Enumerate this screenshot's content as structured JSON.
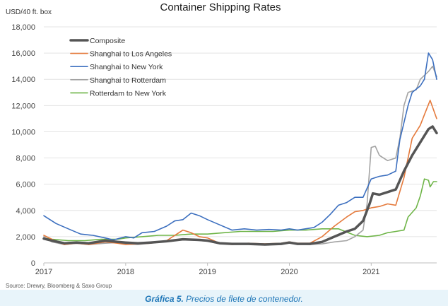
{
  "chart_data": {
    "type": "line",
    "title": "Container Shipping Rates",
    "ylabel": "USD/40 ft. box",
    "xlim": [
      2017,
      2021.8
    ],
    "ylim": [
      0,
      18000
    ],
    "x_ticks": [
      "2017",
      "2018",
      "2019",
      "2020",
      "2021"
    ],
    "y_ticks": [
      "0",
      "2,000",
      "4,000",
      "6,000",
      "8,000",
      "10,000",
      "12,000",
      "14,000",
      "16,000",
      "18,000"
    ],
    "grid": "horizontal",
    "legend": "top-left",
    "source": "Source: Drewry, Bloomberg & Saxo Group",
    "series": [
      {
        "name": "Composite",
        "color": "#555555",
        "width": 3.5,
        "points": [
          [
            2017,
            1850
          ],
          [
            2017.1,
            1700
          ],
          [
            2017.25,
            1500
          ],
          [
            2017.4,
            1550
          ],
          [
            2017.55,
            1500
          ],
          [
            2017.75,
            1700
          ],
          [
            2017.9,
            1600
          ],
          [
            2018.0,
            1550
          ],
          [
            2018.15,
            1500
          ],
          [
            2018.3,
            1550
          ],
          [
            2018.5,
            1650
          ],
          [
            2018.7,
            1800
          ],
          [
            2018.9,
            1750
          ],
          [
            2019.0,
            1700
          ],
          [
            2019.15,
            1500
          ],
          [
            2019.3,
            1450
          ],
          [
            2019.5,
            1450
          ],
          [
            2019.7,
            1400
          ],
          [
            2019.9,
            1450
          ],
          [
            2020.0,
            1550
          ],
          [
            2020.1,
            1450
          ],
          [
            2020.25,
            1450
          ],
          [
            2020.4,
            1600
          ],
          [
            2020.55,
            2000
          ],
          [
            2020.7,
            2400
          ],
          [
            2020.8,
            2600
          ],
          [
            2020.9,
            3200
          ],
          [
            2020.98,
            4500
          ],
          [
            2021.02,
            5300
          ],
          [
            2021.1,
            5200
          ],
          [
            2021.2,
            5400
          ],
          [
            2021.3,
            5600
          ],
          [
            2021.4,
            7000
          ],
          [
            2021.5,
            8200
          ],
          [
            2021.6,
            9200
          ],
          [
            2021.7,
            10200
          ],
          [
            2021.75,
            10400
          ],
          [
            2021.8,
            9900
          ]
        ]
      },
      {
        "name": "Shanghai to Los Angeles",
        "color": "#e57a3c",
        "width": 1.6,
        "points": [
          [
            2017,
            2100
          ],
          [
            2017.1,
            1800
          ],
          [
            2017.25,
            1400
          ],
          [
            2017.4,
            1500
          ],
          [
            2017.55,
            1400
          ],
          [
            2017.75,
            1600
          ],
          [
            2017.9,
            1500
          ],
          [
            2018.0,
            1400
          ],
          [
            2018.15,
            1450
          ],
          [
            2018.3,
            1500
          ],
          [
            2018.5,
            1700
          ],
          [
            2018.7,
            2500
          ],
          [
            2018.8,
            2300
          ],
          [
            2018.9,
            2000
          ],
          [
            2019.0,
            1900
          ],
          [
            2019.15,
            1500
          ],
          [
            2019.3,
            1400
          ],
          [
            2019.5,
            1500
          ],
          [
            2019.7,
            1450
          ],
          [
            2019.9,
            1500
          ],
          [
            2020.0,
            1600
          ],
          [
            2020.1,
            1500
          ],
          [
            2020.25,
            1500
          ],
          [
            2020.4,
            2000
          ],
          [
            2020.55,
            2800
          ],
          [
            2020.7,
            3500
          ],
          [
            2020.8,
            3900
          ],
          [
            2020.9,
            4000
          ],
          [
            2021.0,
            4200
          ],
          [
            2021.1,
            4300
          ],
          [
            2021.2,
            4500
          ],
          [
            2021.3,
            4400
          ],
          [
            2021.4,
            6500
          ],
          [
            2021.5,
            9500
          ],
          [
            2021.6,
            10500
          ],
          [
            2021.65,
            11300
          ],
          [
            2021.72,
            12400
          ],
          [
            2021.8,
            11000
          ]
        ]
      },
      {
        "name": "Shanghai to New York",
        "color": "#3c6fbf",
        "width": 1.6,
        "points": [
          [
            2017,
            3600
          ],
          [
            2017.05,
            3400
          ],
          [
            2017.15,
            3000
          ],
          [
            2017.3,
            2600
          ],
          [
            2017.45,
            2200
          ],
          [
            2017.6,
            2100
          ],
          [
            2017.75,
            1900
          ],
          [
            2017.85,
            1750
          ],
          [
            2018.0,
            2000
          ],
          [
            2018.1,
            1900
          ],
          [
            2018.2,
            2300
          ],
          [
            2018.35,
            2400
          ],
          [
            2018.5,
            2800
          ],
          [
            2018.6,
            3200
          ],
          [
            2018.7,
            3300
          ],
          [
            2018.8,
            3800
          ],
          [
            2018.9,
            3600
          ],
          [
            2019.0,
            3300
          ],
          [
            2019.15,
            2900
          ],
          [
            2019.3,
            2500
          ],
          [
            2019.45,
            2600
          ],
          [
            2019.6,
            2500
          ],
          [
            2019.75,
            2550
          ],
          [
            2019.9,
            2500
          ],
          [
            2020.0,
            2600
          ],
          [
            2020.1,
            2500
          ],
          [
            2020.3,
            2700
          ],
          [
            2020.4,
            3100
          ],
          [
            2020.5,
            3700
          ],
          [
            2020.6,
            4400
          ],
          [
            2020.7,
            4600
          ],
          [
            2020.8,
            5000
          ],
          [
            2020.9,
            5000
          ],
          [
            2021.0,
            6400
          ],
          [
            2021.1,
            6600
          ],
          [
            2021.2,
            6700
          ],
          [
            2021.3,
            7000
          ],
          [
            2021.35,
            9400
          ],
          [
            2021.45,
            12000
          ],
          [
            2021.5,
            13000
          ],
          [
            2021.6,
            13500
          ],
          [
            2021.65,
            14000
          ],
          [
            2021.7,
            16000
          ],
          [
            2021.75,
            15500
          ],
          [
            2021.8,
            14000
          ]
        ]
      },
      {
        "name": "Shanghai to Rotterdam",
        "color": "#a3a3a3",
        "width": 1.6,
        "points": [
          [
            2017,
            2000
          ],
          [
            2017.1,
            1600
          ],
          [
            2017.25,
            1400
          ],
          [
            2017.4,
            1500
          ],
          [
            2017.55,
            1400
          ],
          [
            2017.75,
            1500
          ],
          [
            2017.9,
            1550
          ],
          [
            2018.0,
            1450
          ],
          [
            2018.15,
            1400
          ],
          [
            2018.3,
            1500
          ],
          [
            2018.5,
            1650
          ],
          [
            2018.7,
            1800
          ],
          [
            2018.9,
            1700
          ],
          [
            2019.0,
            1650
          ],
          [
            2019.15,
            1450
          ],
          [
            2019.3,
            1450
          ],
          [
            2019.5,
            1450
          ],
          [
            2019.7,
            1400
          ],
          [
            2019.9,
            1450
          ],
          [
            2020.0,
            1550
          ],
          [
            2020.1,
            1450
          ],
          [
            2020.25,
            1400
          ],
          [
            2020.4,
            1450
          ],
          [
            2020.55,
            1600
          ],
          [
            2020.7,
            1700
          ],
          [
            2020.8,
            2000
          ],
          [
            2020.9,
            2500
          ],
          [
            2020.95,
            4500
          ],
          [
            2021.0,
            8800
          ],
          [
            2021.05,
            8900
          ],
          [
            2021.1,
            8200
          ],
          [
            2021.2,
            7800
          ],
          [
            2021.3,
            8000
          ],
          [
            2021.35,
            9500
          ],
          [
            2021.4,
            12000
          ],
          [
            2021.45,
            13000
          ],
          [
            2021.55,
            13200
          ],
          [
            2021.6,
            14000
          ],
          [
            2021.7,
            14600
          ],
          [
            2021.75,
            15000
          ],
          [
            2021.8,
            14200
          ]
        ]
      },
      {
        "name": "Rotterdam to New York",
        "color": "#6fb548",
        "width": 1.6,
        "points": [
          [
            2017,
            1900
          ],
          [
            2017.1,
            1800
          ],
          [
            2017.3,
            1700
          ],
          [
            2017.5,
            1700
          ],
          [
            2017.7,
            1800
          ],
          [
            2017.9,
            1800
          ],
          [
            2018.0,
            1900
          ],
          [
            2018.2,
            2000
          ],
          [
            2018.4,
            2100
          ],
          [
            2018.6,
            2100
          ],
          [
            2018.8,
            2200
          ],
          [
            2019.0,
            2200
          ],
          [
            2019.2,
            2300
          ],
          [
            2019.4,
            2400
          ],
          [
            2019.6,
            2400
          ],
          [
            2019.8,
            2400
          ],
          [
            2020.0,
            2500
          ],
          [
            2020.2,
            2500
          ],
          [
            2020.4,
            2600
          ],
          [
            2020.6,
            2600
          ],
          [
            2020.8,
            2100
          ],
          [
            2020.95,
            2000
          ],
          [
            2021.1,
            2100
          ],
          [
            2021.2,
            2300
          ],
          [
            2021.3,
            2400
          ],
          [
            2021.4,
            2500
          ],
          [
            2021.45,
            3500
          ],
          [
            2021.55,
            4200
          ],
          [
            2021.6,
            5100
          ],
          [
            2021.65,
            6400
          ],
          [
            2021.7,
            6300
          ],
          [
            2021.72,
            5800
          ],
          [
            2021.76,
            6200
          ],
          [
            2021.8,
            6200
          ]
        ]
      }
    ]
  },
  "caption": {
    "label": "Gráfica 5.",
    "text": " Precios de flete de contenedor."
  }
}
